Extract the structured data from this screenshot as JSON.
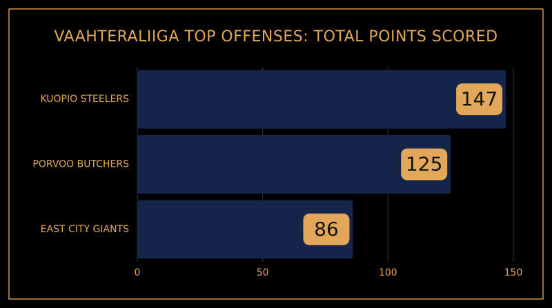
{
  "chart_data": {
    "type": "bar",
    "orientation": "horizontal",
    "title": "VAAHTERALIIGA TOP OFFENSES: TOTAL POINTS SCORED",
    "categories": [
      "KUOPIO STEELERS",
      "PORVOO BUTCHERS",
      "EAST CITY GIANTS"
    ],
    "values": [
      147,
      125,
      86
    ],
    "color": "#14244a",
    "label_color": "#e3a857",
    "xlim": [
      0,
      150
    ],
    "xticks": [
      0,
      50,
      100,
      150
    ],
    "grid": true
  }
}
